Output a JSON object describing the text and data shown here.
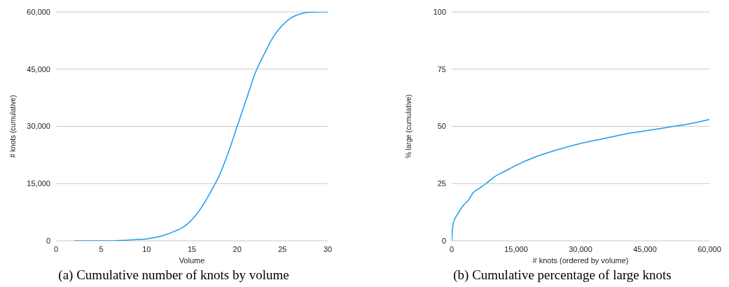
{
  "chart_data": [
    {
      "type": "line",
      "title": "(a) Cumulative number of knots by volume",
      "xlabel": "Volume",
      "ylabel": "# knots (cumulative)",
      "x": [
        2,
        4,
        6,
        8,
        10,
        11,
        12,
        13,
        14,
        15,
        16,
        17,
        18,
        19,
        20,
        21,
        22,
        23,
        24,
        25,
        26,
        27,
        28,
        29,
        30
      ],
      "series": [
        {
          "color": "#1a9bef",
          "values": [
            0,
            0,
            0,
            200,
            500,
            900,
            1500,
            2400,
            3500,
            5500,
            8500,
            12500,
            17000,
            23000,
            30000,
            37000,
            44000,
            49000,
            53500,
            56500,
            58500,
            59500,
            59900,
            60000,
            60000
          ]
        }
      ],
      "xlim": [
        0,
        30
      ],
      "xticks": [
        0,
        5,
        10,
        15,
        20,
        25,
        30
      ],
      "ylim": [
        0,
        60000
      ],
      "yticks": [
        0,
        {
          "value": 15000,
          "label": "15,000"
        },
        {
          "value": 30000,
          "label": "30,000"
        },
        {
          "value": 45000,
          "label": "45,000"
        },
        {
          "value": 60000,
          "label": "60,000"
        }
      ],
      "grid": "y",
      "legend": false,
      "marker": "none",
      "line_style": "solid"
    },
    {
      "type": "line",
      "title": "(b) Cumulative percentage of large knots",
      "xlabel": "# knots (ordered by volume)",
      "ylabel": "% large (cumulative)",
      "x": [
        0,
        300,
        600,
        1500,
        2500,
        4000,
        5000,
        6500,
        8000,
        10000,
        12500,
        15000,
        20000,
        25000,
        30000,
        35000,
        40000,
        45000,
        50000,
        55000,
        60000
      ],
      "series": [
        {
          "color": "#1a9bef",
          "values": [
            0,
            7,
            9,
            12,
            15,
            18,
            21,
            23,
            25,
            28,
            30.5,
            33,
            37,
            40,
            42.5,
            44.5,
            46.5,
            48,
            49.5,
            51,
            53
          ]
        }
      ],
      "xlim": [
        0,
        60000
      ],
      "xticks": [
        0,
        {
          "value": 15000,
          "label": "15,000"
        },
        {
          "value": 30000,
          "label": "30,000"
        },
        {
          "value": 45000,
          "label": "45,000"
        },
        {
          "value": 60000,
          "label": "60,000"
        }
      ],
      "ylim": [
        0,
        100
      ],
      "yticks": [
        0,
        25,
        50,
        75,
        100
      ],
      "grid": "y",
      "legend": false,
      "marker": "none",
      "line_style": "solid"
    }
  ]
}
